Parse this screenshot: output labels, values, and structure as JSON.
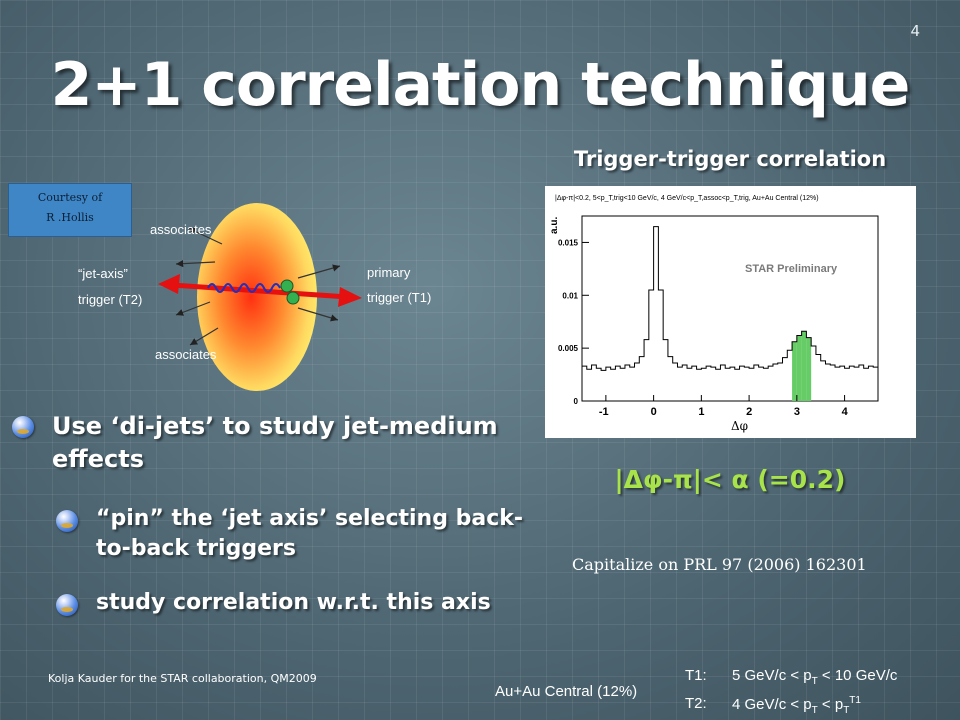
{
  "slide": {
    "page_number": "4",
    "title": "2+1 correlation technique",
    "plot_title": "Trigger-trigger correlation"
  },
  "diagram": {
    "courtesy_line1": "Courtesy of",
    "courtesy_line2": "R .Hollis",
    "associates_top": "associates",
    "associates_bottom": "associates",
    "jet_axis_line1": "“jet-axis”",
    "jet_axis_line2": "trigger (T2)",
    "primary_line1": "primary",
    "primary_line2": "trigger (T1)"
  },
  "bullets": {
    "main": "Use ‘di-jets’ to study jet-medium effects",
    "sub1": "“pin” the ‘jet axis’ selecting back-to-back triggers",
    "sub2": "study correlation w.r.t. this axis"
  },
  "plot": {
    "header": "|Δφ-π|<0.2, 5<p_T,trig<10 GeV/c, 4 GeV/c<p_T,assoc<p_T,trig, Au+Au Central (12%)",
    "ylabel": "a.u.",
    "xlabel": "Δφ",
    "watermark": "STAR Preliminary",
    "x_ticks": [
      "-1",
      "0",
      "1",
      "2",
      "3",
      "4"
    ],
    "y_ticks": [
      "0",
      "0.005",
      "0.01",
      "0.015"
    ],
    "colors": {
      "line": "#000000",
      "highlight": "#66cc66"
    }
  },
  "chart_data": {
    "type": "line",
    "xlabel": "Δφ",
    "ylabel": "a.u.",
    "xlim": [
      -1.5,
      4.7
    ],
    "ylim": [
      0,
      0.0175
    ],
    "x": [
      -1.45,
      -1.35,
      -1.25,
      -1.15,
      -1.05,
      -0.95,
      -0.85,
      -0.75,
      -0.65,
      -0.55,
      -0.45,
      -0.35,
      -0.25,
      -0.15,
      -0.05,
      0.05,
      0.15,
      0.25,
      0.35,
      0.45,
      0.55,
      0.65,
      0.75,
      0.85,
      0.95,
      1.05,
      1.15,
      1.25,
      1.35,
      1.45,
      1.55,
      1.65,
      1.75,
      1.85,
      1.95,
      2.05,
      2.15,
      2.25,
      2.35,
      2.45,
      2.55,
      2.65,
      2.75,
      2.85,
      2.95,
      3.05,
      3.15,
      3.25,
      3.35,
      3.45,
      3.55,
      3.65,
      3.75,
      3.85,
      3.95,
      4.05,
      4.15,
      4.25,
      4.35,
      4.45,
      4.55,
      4.65
    ],
    "y": [
      0.0033,
      0.003,
      0.0034,
      0.0031,
      0.0029,
      0.0032,
      0.003,
      0.0033,
      0.0031,
      0.0034,
      0.0032,
      0.0036,
      0.0042,
      0.0058,
      0.0105,
      0.0165,
      0.0105,
      0.0058,
      0.0042,
      0.0036,
      0.0032,
      0.0034,
      0.0031,
      0.0033,
      0.003,
      0.0031,
      0.0033,
      0.0032,
      0.003,
      0.0034,
      0.0031,
      0.0032,
      0.003,
      0.0033,
      0.0032,
      0.0031,
      0.0034,
      0.0032,
      0.0031,
      0.0033,
      0.0035,
      0.0036,
      0.0041,
      0.0048,
      0.0056,
      0.0062,
      0.0066,
      0.006,
      0.0052,
      0.0044,
      0.0038,
      0.0035,
      0.0034,
      0.0032,
      0.0033,
      0.0031,
      0.0033,
      0.0032,
      0.0034,
      0.0031,
      0.0033,
      0.0032
    ],
    "highlight_range": [
      2.94,
      3.34
    ]
  },
  "right_text": {
    "formula": "|Δφ-π|< α (=0.2)",
    "capitalize": "Capitalize on PRL 97 (2006) 162301"
  },
  "footer": {
    "credit": "Kolja Kauder for the STAR collaboration, QM2009",
    "collision": "Au+Au Central (12%)",
    "t1_label": "T1:",
    "t1_text": "5 GeV/c < p",
    "t1_sub": "T",
    "t1_end": " < 10 GeV/c",
    "t2_label": "T2:",
    "t2_text": "4 GeV/c < p",
    "t2_sub": "T",
    "t2_mid": " < p",
    "t2_sub2": "T",
    "t2_sup": "T1"
  }
}
